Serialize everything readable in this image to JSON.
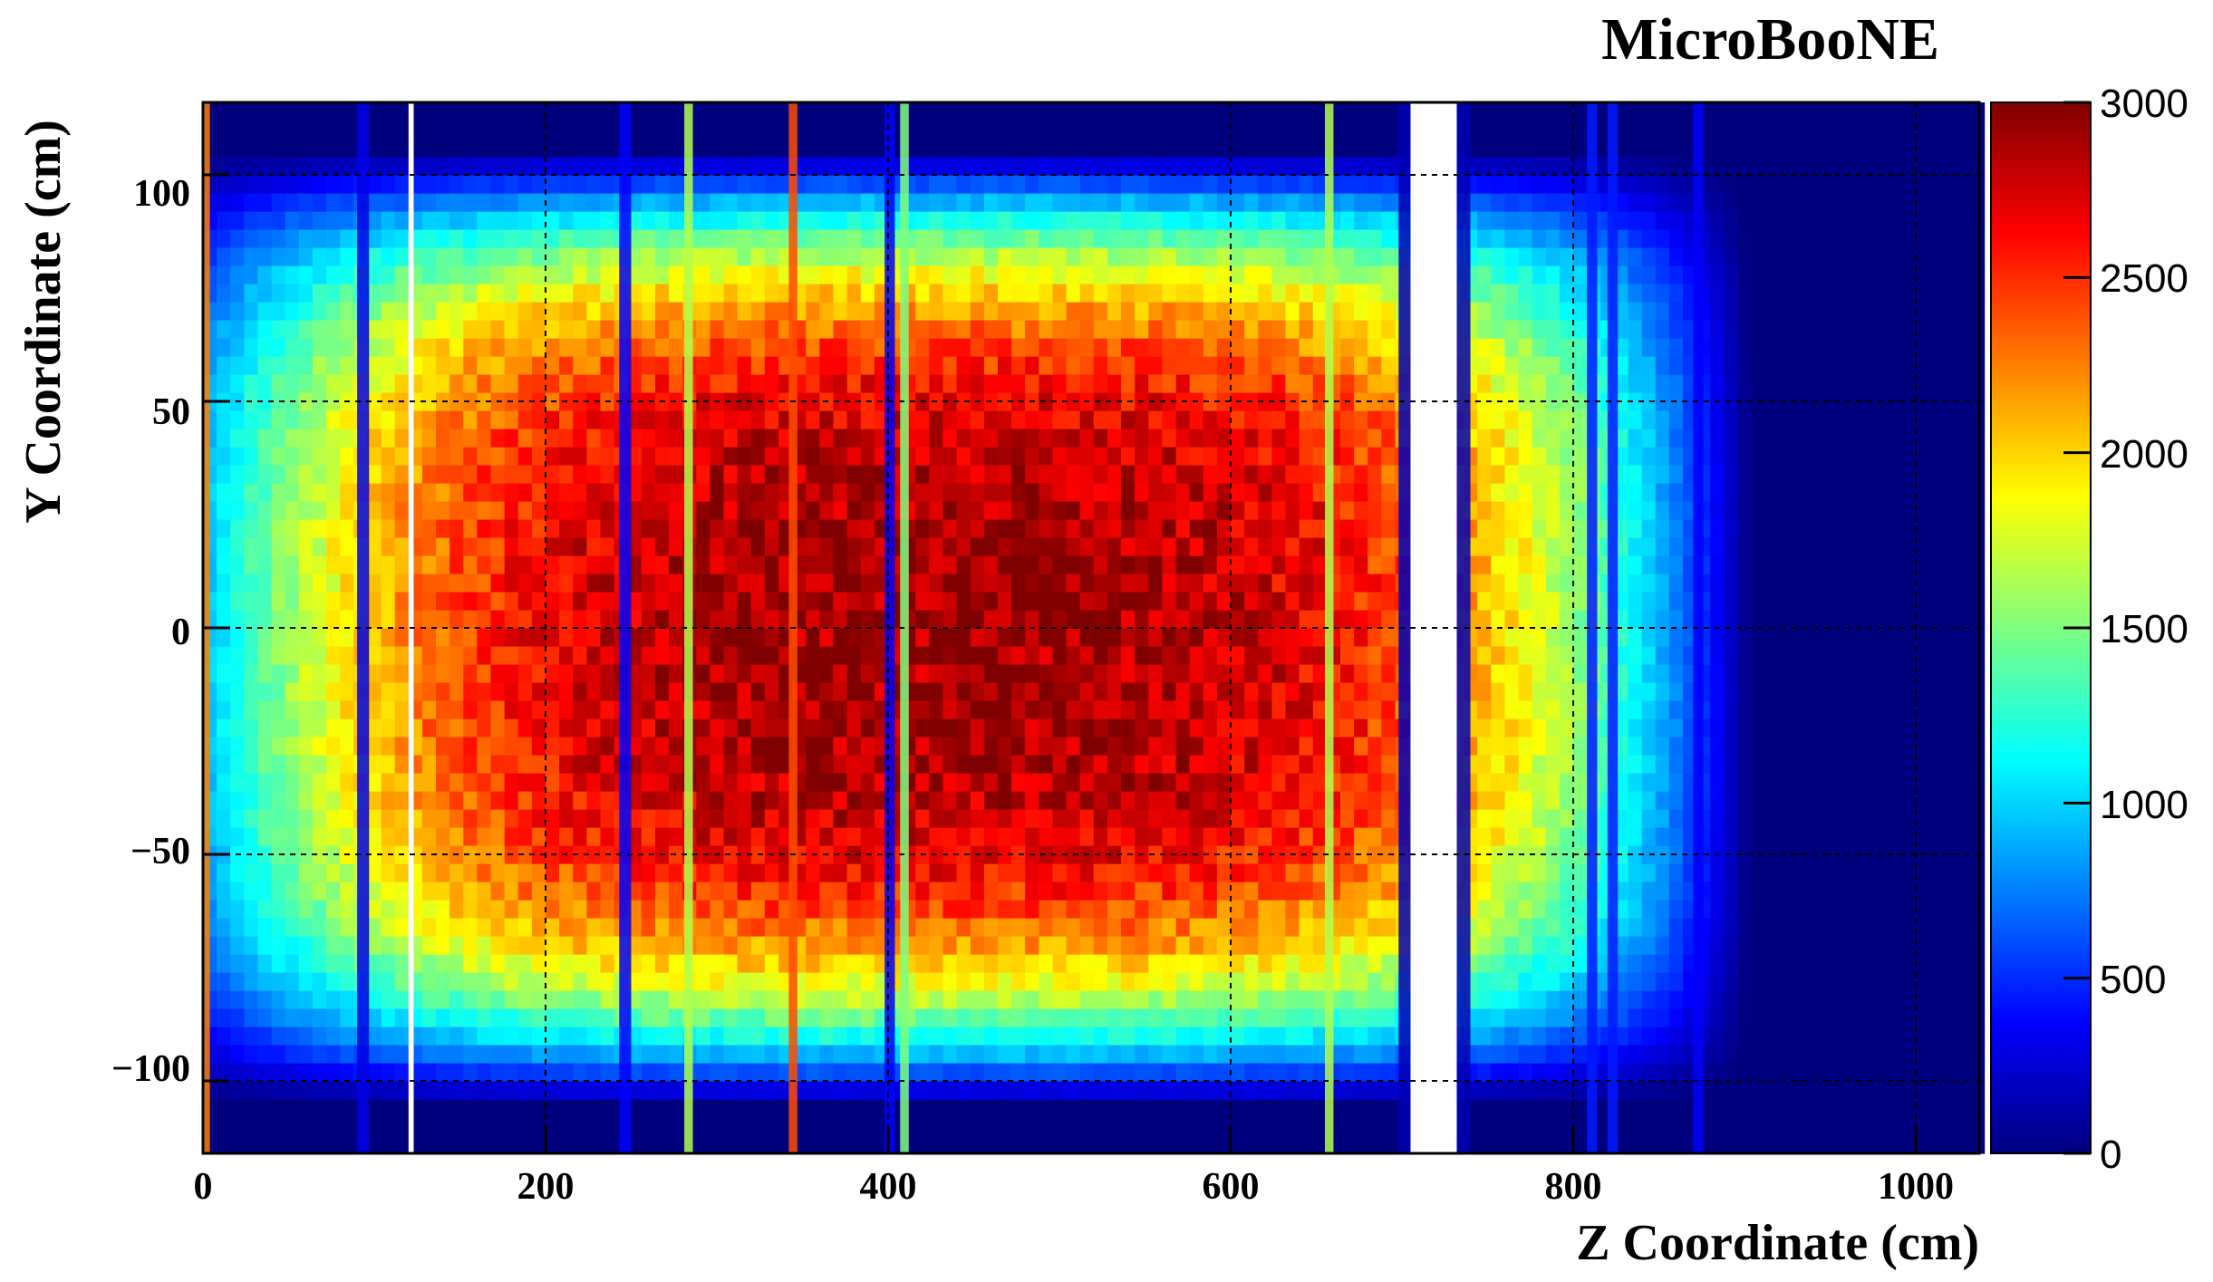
{
  "chart_data": {
    "type": "heatmap",
    "title": "MicroBooNE",
    "xlabel": "Z Coordinate (cm)",
    "ylabel": "Y Coordinate (cm)",
    "xlim": [
      0,
      1037
    ],
    "ylim": [
      -116,
      116
    ],
    "xticks": [
      0,
      200,
      400,
      600,
      800,
      1000
    ],
    "yticks": [
      -100,
      -50,
      0,
      50,
      100
    ],
    "xtick_labels": [
      "0",
      "200",
      "400",
      "600",
      "800",
      "1000"
    ],
    "ytick_labels": [
      "−100",
      "−50",
      "0",
      "50",
      "100"
    ],
    "colorbar": {
      "range": [
        0,
        3000
      ],
      "ticks": [
        0,
        500,
        1000,
        1500,
        2000,
        2500,
        3000
      ],
      "tick_labels": [
        "0",
        "500",
        "1000",
        "1500",
        "2000",
        "2500",
        "3000"
      ],
      "palette": [
        "#00007f",
        "#0000ff",
        "#007fff",
        "#00ffff",
        "#7fff7f",
        "#ffff00",
        "#ff7f00",
        "#ff0000",
        "#7f0000"
      ]
    },
    "grid": true,
    "bins": {
      "nx": 130,
      "ny": 58,
      "z_step_cm": 8,
      "y_step_cm": 4
    },
    "peak_counts": 2900,
    "core_region": {
      "z_range": [
        150,
        700
      ],
      "y_range": [
        -45,
        45
      ]
    },
    "dead_wire_bands_z": [
      {
        "z_range": [
          0,
          4
        ],
        "level": 0.75
      },
      {
        "z_range": [
          90,
          97
        ],
        "level": 0.1
      },
      {
        "z_range": [
          120,
          123
        ],
        "level": 0.0
      },
      {
        "z_range": [
          243,
          250
        ],
        "level": 0.12
      },
      {
        "z_range": [
          281,
          286
        ],
        "level": 0.55
      },
      {
        "z_range": [
          342,
          347
        ],
        "level": 0.8
      },
      {
        "z_range": [
          398,
          404
        ],
        "level": 0.12
      },
      {
        "z_range": [
          407,
          412
        ],
        "level": 0.5
      },
      {
        "z_range": [
          655,
          660
        ],
        "level": 0.55
      },
      {
        "z_range": [
          698,
          705
        ],
        "level": 0.05
      },
      {
        "z_range": [
          705,
          732
        ],
        "level": 0.0
      },
      {
        "z_range": [
          732,
          740
        ],
        "level": 0.05
      },
      {
        "z_range": [
          808,
          814
        ],
        "level": 0.15
      },
      {
        "z_range": [
          820,
          826
        ],
        "level": 0.15
      },
      {
        "z_range": [
          870,
          876
        ],
        "level": 0.12
      }
    ]
  }
}
